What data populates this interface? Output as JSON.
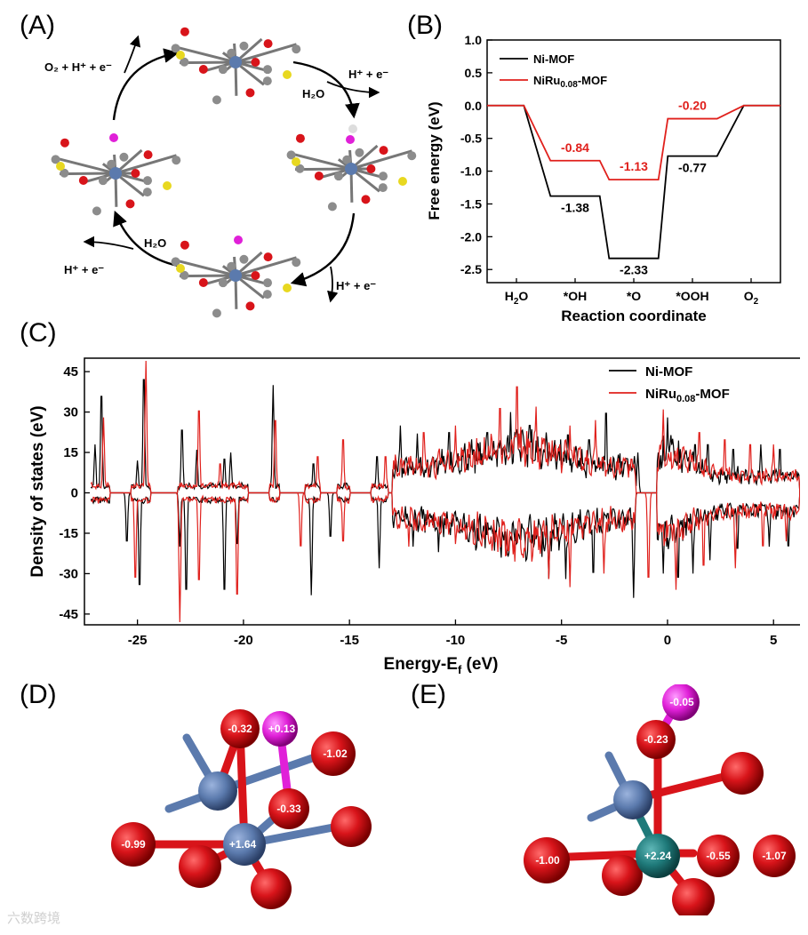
{
  "panel_labels": {
    "a": "(A)",
    "b": "(B)",
    "c": "(C)",
    "d": "(D)",
    "e": "(E)"
  },
  "cycle": {
    "top_left": "O₂ + H⁺ + e⁻",
    "top_right": "H⁺ + e⁻",
    "top_water": "H₂O",
    "bottom_water": "H₂O",
    "bottom_left": "H⁺ + e⁻",
    "bottom_right": "H⁺ + e⁻"
  },
  "colors": {
    "ni_mof": "#000000",
    "niru_mof": "#e0201c",
    "oxygen": "#d8141a",
    "carbon": "#8c8c8c",
    "sulfur": "#e8d820",
    "metal_ni": "#5b7aad",
    "metal_ru": "#1f7a7a",
    "hydrogen_spec": "#e020d8"
  },
  "chart_data": [
    {
      "type": "line",
      "title": "",
      "xlabel": "Reaction coordinate",
      "ylabel": "Free energy (eV)",
      "categories": [
        "H2O",
        "*OH",
        "*O",
        "*OOH",
        "O2"
      ],
      "ylim": [
        -2.7,
        1.0
      ],
      "yticks": [
        "1.0",
        "0.5",
        "0.0",
        "-0.5",
        "-1.0",
        "-1.5",
        "-2.0",
        "-2.5"
      ],
      "series": [
        {
          "name": "Ni-MOF",
          "values": [
            0,
            -1.38,
            -2.33,
            -0.77,
            0
          ],
          "labels": [
            "",
            "-1.38",
            "-2.33",
            "-0.77",
            ""
          ]
        },
        {
          "name": "NiRu0.08-MOF",
          "values": [
            0,
            -0.84,
            -1.13,
            -0.2,
            0
          ],
          "labels": [
            "",
            "-0.84",
            "-1.13",
            "-0.20",
            ""
          ]
        }
      ],
      "legend": [
        {
          "name": "Ni-MOF",
          "text": "Ni-MOF"
        },
        {
          "name": "NiRu0.08-MOF",
          "text": "NiRu",
          "sub": "0.08",
          "tail": "-MOF"
        }
      ]
    },
    {
      "type": "line",
      "title": "",
      "xlabel": "Energy-E",
      "xlabel_sub": "f",
      "xlabel_tail": " (eV)",
      "ylabel": "Density of states (eV)",
      "xlim": [
        -27.5,
        6.5
      ],
      "ylim": [
        -49,
        50
      ],
      "xticks": [
        "-25",
        "-20",
        "-15",
        "-10",
        "-5",
        "0",
        "5"
      ],
      "yticks": [
        "45",
        "30",
        "15",
        "0",
        "-15",
        "-30",
        "-45"
      ],
      "series": [
        {
          "name": "Ni-MOF",
          "peaks": [
            [
              -27.0,
              18
            ],
            [
              -26.7,
              40
            ],
            [
              -25.0,
              12
            ],
            [
              -24.7,
              47
            ],
            [
              -22.9,
              26
            ],
            [
              -22.2,
              16
            ],
            [
              -20.9,
              14
            ],
            [
              -20.6,
              15
            ],
            [
              -18.6,
              40
            ],
            [
              -16.7,
              12
            ],
            [
              -13.7,
              15
            ],
            [
              -12.6,
              25
            ],
            [
              -11.8,
              22
            ],
            [
              -10.3,
              25
            ],
            [
              -8.5,
              25
            ],
            [
              -7.4,
              30
            ],
            [
              -6.5,
              28
            ],
            [
              -4.7,
              24
            ],
            [
              -3.7,
              22
            ],
            [
              -2.9,
              33
            ],
            [
              -1.4,
              15
            ],
            [
              0.0,
              28
            ],
            [
              0.8,
              15
            ],
            [
              1.3,
              20
            ],
            [
              1.9,
              20
            ],
            [
              3.1,
              18
            ],
            [
              4.4,
              18
            ],
            [
              5.3,
              18
            ]
          ],
          "dips": [
            [
              -25.5,
              -20
            ],
            [
              -24.9,
              -38
            ],
            [
              -23.0,
              -20
            ],
            [
              -22.7,
              -40
            ],
            [
              -20.9,
              -40
            ],
            [
              -20.3,
              -21
            ],
            [
              -16.8,
              -38
            ],
            [
              -15.9,
              -18
            ],
            [
              -13.6,
              -28
            ],
            [
              -12.0,
              -20
            ],
            [
              -10.8,
              -22
            ],
            [
              -9.0,
              -20
            ],
            [
              -7.5,
              -25
            ],
            [
              -5.6,
              -32
            ],
            [
              -4.8,
              -32
            ],
            [
              -3.5,
              -33
            ],
            [
              -1.6,
              -39
            ],
            [
              -0.2,
              -30
            ],
            [
              0.5,
              -35
            ],
            [
              1.2,
              -30
            ],
            [
              2.0,
              -25
            ],
            [
              3.3,
              -23
            ],
            [
              4.8,
              -20
            ],
            [
              5.7,
              -22
            ]
          ]
        },
        {
          "name": "NiRu0.08-MOF",
          "peaks": [
            [
              -26.6,
              28
            ],
            [
              -24.6,
              49
            ],
            [
              -22.1,
              34
            ],
            [
              -21.1,
              12
            ],
            [
              -18.5,
              30
            ],
            [
              -16.5,
              15
            ],
            [
              -15.3,
              22
            ],
            [
              -13.3,
              15
            ],
            [
              -11.5,
              25
            ],
            [
              -10.0,
              25
            ],
            [
              -7.9,
              35
            ],
            [
              -7.1,
              44
            ],
            [
              -6.2,
              32
            ],
            [
              -4.6,
              25
            ],
            [
              -3.4,
              27
            ],
            [
              -1.7,
              14
            ],
            [
              -0.2,
              31
            ],
            [
              1.5,
              25
            ],
            [
              2.7,
              22
            ],
            [
              3.9,
              20
            ],
            [
              5.0,
              18
            ]
          ],
          "dips": [
            [
              -25.1,
              -35
            ],
            [
              -23.0,
              -48
            ],
            [
              -22.1,
              -36
            ],
            [
              -20.3,
              -42
            ],
            [
              -17.3,
              -22
            ],
            [
              -15.3,
              -20
            ],
            [
              -12.2,
              -20
            ],
            [
              -10.0,
              -19
            ],
            [
              -7.5,
              -24
            ],
            [
              -5.6,
              -32
            ],
            [
              -4.6,
              -35
            ],
            [
              -3.0,
              -30
            ],
            [
              -0.9,
              -35
            ],
            [
              0.4,
              -36
            ],
            [
              1.7,
              -30
            ],
            [
              3.2,
              -28
            ],
            [
              4.5,
              -22
            ],
            [
              5.6,
              -18
            ]
          ]
        }
      ],
      "legend": [
        {
          "name": "Ni-MOF",
          "text": "Ni-MOF"
        },
        {
          "name": "NiRu0.08-MOF",
          "text": "NiRu",
          "sub": "0.08",
          "tail": "-MOF"
        }
      ]
    }
  ],
  "charges_d": {
    "top_o": "-0.32",
    "h": "+0.13",
    "right_o": "-1.02",
    "mid_o": "-0.33",
    "left_o": "-0.99",
    "metal": "+1.64"
  },
  "charges_e": {
    "h": "-0.05",
    "top_o": "-0.23",
    "left_o": "-1.00",
    "metal": "+2.24",
    "right_o1": "-0.55",
    "right_o2": "-1.07"
  },
  "watermark": "六数跨境"
}
